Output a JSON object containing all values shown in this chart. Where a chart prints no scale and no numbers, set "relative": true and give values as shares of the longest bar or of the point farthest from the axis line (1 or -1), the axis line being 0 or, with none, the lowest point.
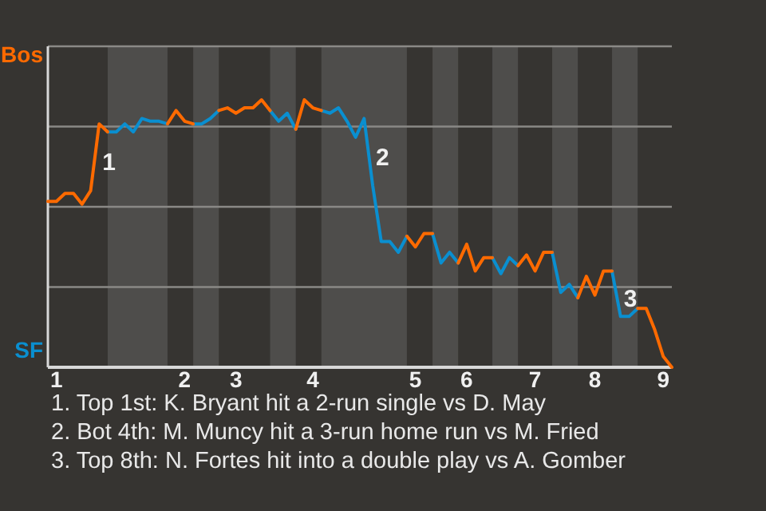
{
  "chart_data": {
    "type": "line",
    "relative": true,
    "grid": "y",
    "legend": false,
    "marker": "none",
    "line_style": "solid",
    "categories": [
      null,
      "1",
      null,
      null,
      null,
      null,
      null,
      null,
      null,
      null,
      null,
      null,
      null,
      null,
      null,
      null,
      "2",
      null,
      null,
      null,
      null,
      null,
      "3",
      null,
      null,
      null,
      null,
      null,
      null,
      null,
      null,
      "4",
      null,
      null,
      null,
      null,
      null,
      null,
      null,
      null,
      null,
      null,
      null,
      "5",
      null,
      null,
      null,
      null,
      null,
      "6",
      null,
      null,
      null,
      null,
      null,
      null,
      null,
      "7",
      null,
      null,
      null,
      null,
      null,
      null,
      "8",
      null,
      null,
      null,
      null,
      null,
      null,
      null,
      "9",
      null
    ],
    "series": [
      {
        "color": "#ff6a00",
        "values": [
          0.62,
          0.62,
          0.65,
          0.65,
          0.61,
          0.66,
          0.91,
          0.88,
          null,
          null,
          null,
          null,
          null,
          null,
          0.91,
          0.96,
          0.92,
          0.91,
          null,
          null,
          0.96,
          0.97,
          0.95,
          0.97,
          0.97,
          1,
          0.96,
          null,
          null,
          0.89,
          1,
          0.97,
          0.96,
          null,
          null,
          null,
          null,
          null,
          null,
          null,
          null,
          null,
          0.49,
          0.45,
          0.5,
          0.5,
          null,
          null,
          0.39,
          0.46,
          0.36,
          0.41,
          0.41,
          null,
          null,
          0.38,
          0.42,
          0.36,
          0.43,
          0.43,
          null,
          null,
          0.26,
          0.34,
          0.27,
          0.36,
          0.36,
          null,
          null,
          0.22,
          0.22,
          0.14,
          0.04,
          0
        ]
      },
      {
        "color": "#0a8fd0",
        "values": [
          null,
          null,
          null,
          null,
          null,
          null,
          null,
          0.88,
          0.88,
          0.91,
          0.88,
          0.93,
          0.92,
          0.92,
          0.91,
          null,
          null,
          0.91,
          0.91,
          0.93,
          0.96,
          null,
          null,
          null,
          null,
          null,
          0.96,
          0.92,
          0.95,
          0.89,
          null,
          null,
          0.96,
          0.95,
          0.97,
          0.92,
          0.86,
          0.93,
          0.68,
          0.47,
          0.47,
          0.43,
          0.49,
          null,
          null,
          0.5,
          0.39,
          0.43,
          0.39,
          null,
          null,
          null,
          0.41,
          0.35,
          0.41,
          0.38,
          null,
          null,
          null,
          0.43,
          0.28,
          0.31,
          0.26,
          null,
          null,
          null,
          0.36,
          0.19,
          0.19,
          0.22,
          null,
          null,
          null,
          null
        ]
      }
    ],
    "annotations": [
      "Bos",
      "SF",
      "1",
      "2",
      "3",
      "1. Top 1st: K. Bryant hit a 2-run single vs D. May",
      "2. Bot 4th: M. Muncy hit a 3-run home run vs M. Fried",
      "3. Top 8th: N. Fortes hit into a double play vs A. Gomber"
    ]
  }
}
